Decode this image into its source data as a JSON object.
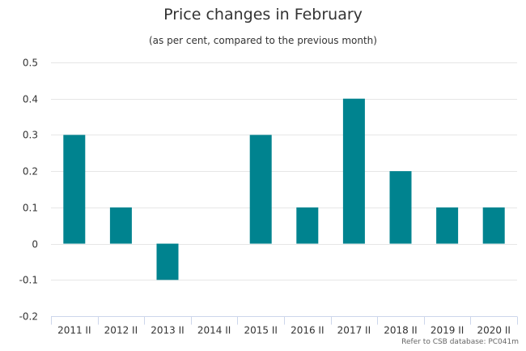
{
  "chart_data": {
    "type": "bar",
    "title": "Price changes in February",
    "subtitle": "(as per cent, compared to the previous month)",
    "categories": [
      "2011 II",
      "2012 II",
      "2013 II",
      "2014 II",
      "2015 II",
      "2016 II",
      "2017 II",
      "2018 II",
      "2019 II",
      "2020 II"
    ],
    "values": [
      0.3,
      0.1,
      -0.1,
      0,
      0.3,
      0.1,
      0.4,
      0.2,
      0.1,
      0.1
    ],
    "yticks": [
      "0.5",
      "0.4",
      "0.3",
      "0.2",
      "0.1",
      "0",
      "-0.1",
      "-0.2"
    ],
    "ylim": [
      -0.2,
      0.5
    ],
    "xlabel": "",
    "ylabel": "",
    "grid": true,
    "bar_color": "#00838F",
    "credit": "Refer to CSB database: PC041m"
  }
}
